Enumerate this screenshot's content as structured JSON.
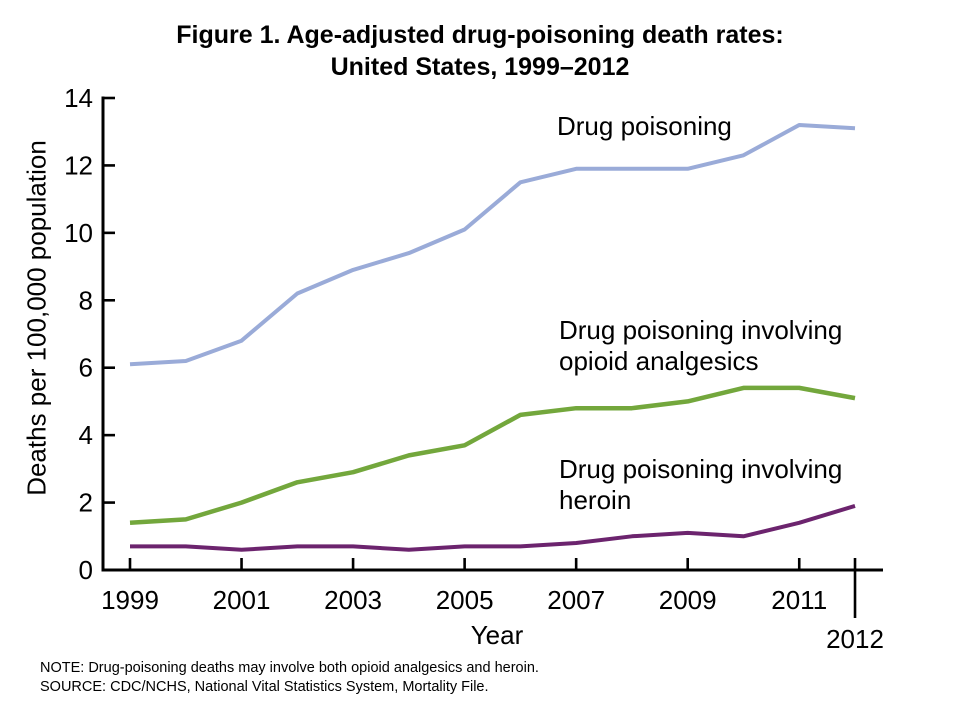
{
  "title": {
    "line1": "Figure 1. Age-adjusted drug-poisoning death rates:",
    "line2": "United States, 1999–2012"
  },
  "chart_data": {
    "type": "line",
    "x": [
      1999,
      2000,
      2001,
      2002,
      2003,
      2004,
      2005,
      2006,
      2007,
      2008,
      2009,
      2010,
      2011,
      2012
    ],
    "series": [
      {
        "name": "Drug poisoning",
        "color": "#9aabd8",
        "stroke_width": 4,
        "values": [
          6.1,
          6.2,
          6.8,
          8.2,
          8.9,
          9.4,
          10.1,
          11.5,
          11.9,
          11.9,
          11.9,
          12.3,
          13.2,
          13.1
        ]
      },
      {
        "name": "Drug poisoning involving opioid analgesics",
        "color": "#73a73c",
        "stroke_width": 4.5,
        "values": [
          1.4,
          1.5,
          2.0,
          2.6,
          2.9,
          3.4,
          3.7,
          4.6,
          4.8,
          4.8,
          5.0,
          5.4,
          5.4,
          5.1
        ]
      },
      {
        "name": "Drug poisoning involving heroin",
        "color": "#6c246e",
        "stroke_width": 4,
        "values": [
          0.7,
          0.7,
          0.6,
          0.7,
          0.7,
          0.6,
          0.7,
          0.7,
          0.8,
          1.0,
          1.1,
          1.0,
          1.4,
          1.9
        ]
      }
    ],
    "title": "Figure 1. Age-adjusted drug-poisoning death rates: United States, 1999–2012",
    "xlabel": "Year",
    "ylabel": "Deaths per 100,000 population",
    "ylim": [
      0,
      14
    ],
    "y_ticks": [
      0,
      2,
      4,
      6,
      8,
      10,
      12,
      14
    ],
    "x_ticks": [
      1999,
      2001,
      2003,
      2005,
      2007,
      2009,
      2011
    ],
    "x_end_tick": 2012,
    "grid": false,
    "legend_position": "inline-annotations"
  },
  "annotations": {
    "drug_poisoning": {
      "line1": "Drug poisoning"
    },
    "opioids": {
      "line1": "Drug poisoning involving",
      "line2": "opioid analgesics"
    },
    "heroin": {
      "line1": "Drug poisoning involving",
      "line2": "heroin"
    }
  },
  "footer": {
    "note": "NOTE: Drug-poisoning deaths may involve both opioid analgesics and heroin.",
    "source": "SOURCE: CDC/NCHS, National Vital Statistics System, Mortality File."
  }
}
